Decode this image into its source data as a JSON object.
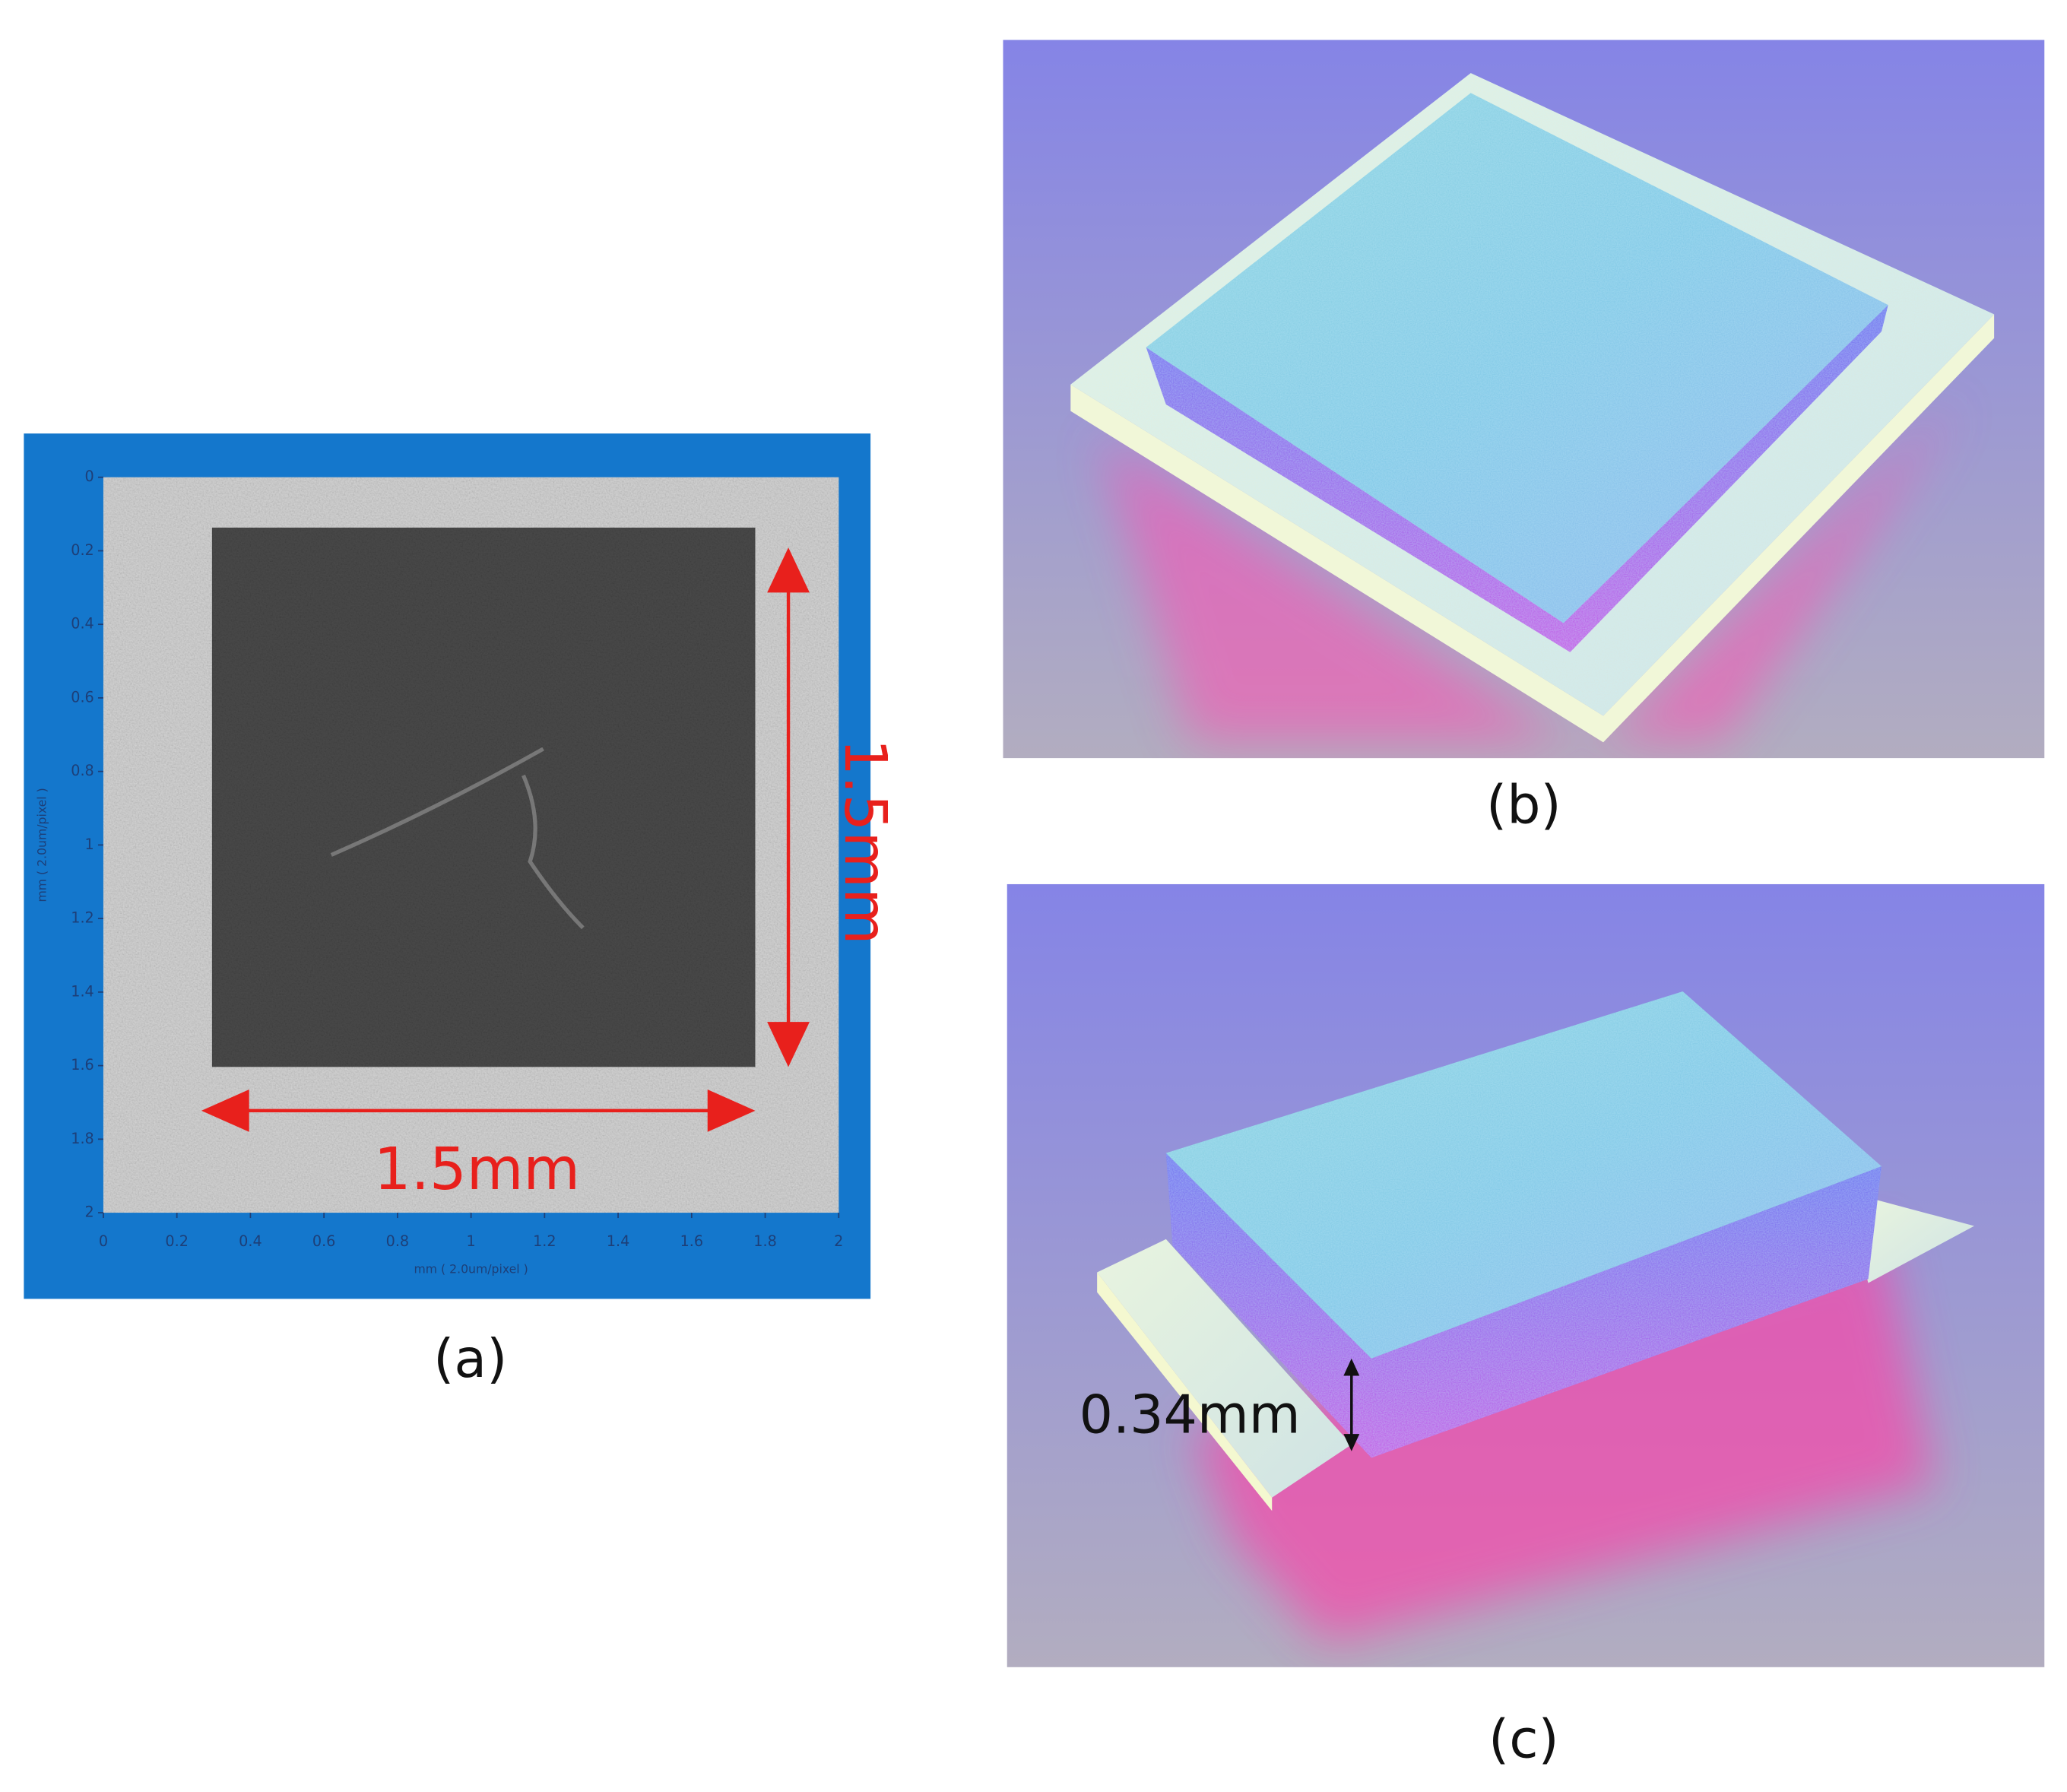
{
  "panels": {
    "a": {
      "label": "(a)",
      "xlabel": "mm ( 2.0um/pixel )",
      "ylabel": "mm ( 2.0um/pixel )",
      "xlim": [
        0,
        2
      ],
      "ylim": [
        0,
        2
      ],
      "xticks": [
        0,
        0.2,
        0.4,
        0.6,
        0.8,
        1,
        1.2,
        1.4,
        1.6,
        1.8,
        2
      ],
      "yticks": [
        0,
        0.2,
        0.4,
        0.6,
        0.8,
        1,
        1.2,
        1.4,
        1.6,
        1.8,
        2
      ],
      "width_annotation": "1.5mm",
      "height_annotation": "1.5mm"
    },
    "b": {
      "label": "(b)"
    },
    "c": {
      "label": "(c)",
      "thickness_annotation": "0.34mm"
    }
  }
}
